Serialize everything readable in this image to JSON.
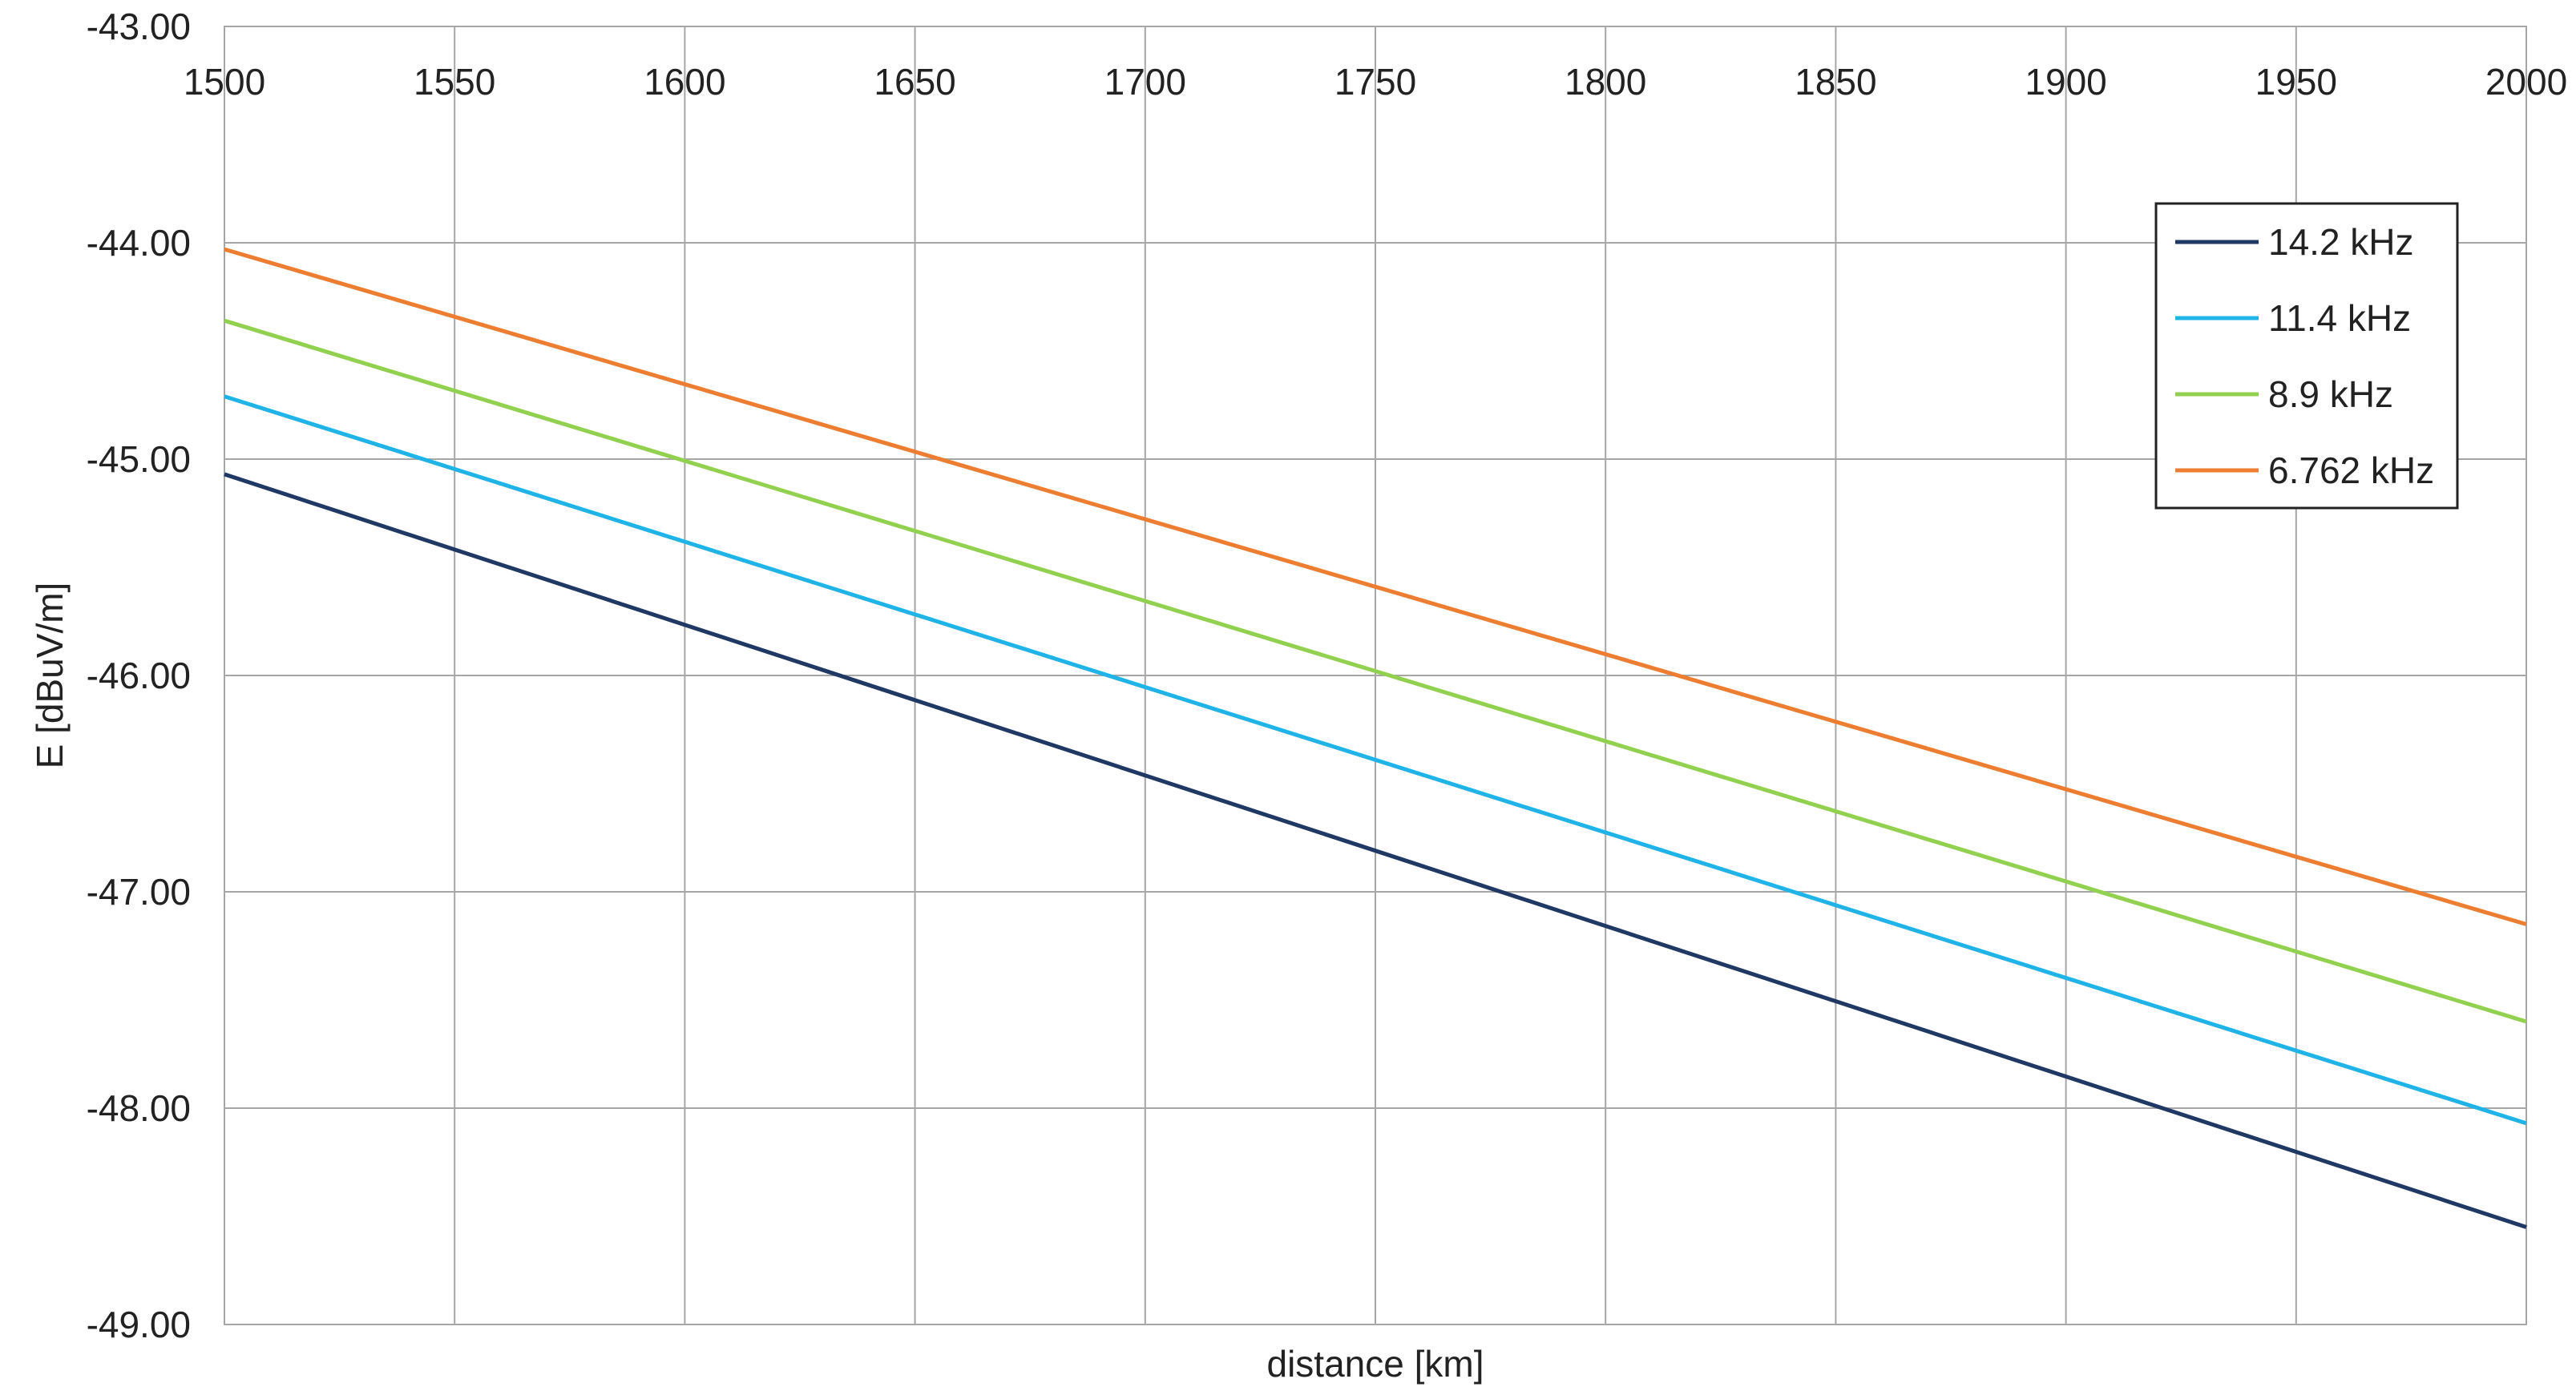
{
  "chart_data": {
    "type": "line",
    "title": "",
    "xlabel": "distance [km]",
    "ylabel": "E [dBuV/m]",
    "xlim": [
      1500,
      2000
    ],
    "ylim": [
      -49,
      -43
    ],
    "x_ticks": [
      "1500",
      "1550",
      "1600",
      "1650",
      "1700",
      "1750",
      "1800",
      "1850",
      "1900",
      "1950",
      "2000"
    ],
    "y_ticks": [
      "-43.00",
      "-44.00",
      "-45.00",
      "-46.00",
      "-47.00",
      "-48.00",
      "-49.00"
    ],
    "x_axis_position": "top",
    "grid": true,
    "legend_position": "top-right",
    "series": [
      {
        "name": "14.2 kHz",
        "color": "#1f3864",
        "x": [
          1500,
          2000
        ],
        "y": [
          -45.07,
          -48.55
        ]
      },
      {
        "name": "11.4 kHz",
        "color": "#1fb3e8",
        "x": [
          1500,
          2000
        ],
        "y": [
          -44.71,
          -48.07
        ]
      },
      {
        "name": "8.9 kHz",
        "color": "#92d050",
        "x": [
          1500,
          2000
        ],
        "y": [
          -44.36,
          -47.6
        ]
      },
      {
        "name": "6.762 kHz",
        "color": "#ed7d31",
        "x": [
          1500,
          2000
        ],
        "y": [
          -44.03,
          -47.15
        ]
      }
    ]
  }
}
